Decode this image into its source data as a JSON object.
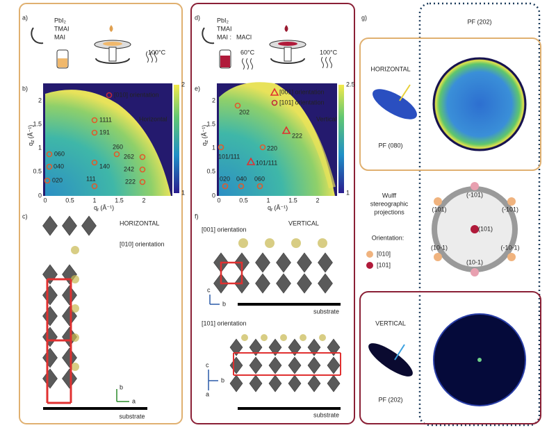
{
  "panel_a": {
    "label": "a)",
    "reagents": [
      "PbI₂",
      "TMAI",
      "MAI"
    ],
    "temperature": "100°C"
  },
  "panel_b": {
    "label": "b)",
    "legend": "[010] orientation",
    "direction": "Horizontal",
    "colorbar_ticks": [
      "2",
      "1"
    ],
    "x_ticks": [
      "0",
      "0.5",
      "1",
      "1.5",
      "2"
    ],
    "y_ticks": [
      "0",
      "0.5",
      "1",
      "1.5",
      "2"
    ],
    "x_axis_label": {
      "symbol": "q",
      "subscript": "r",
      "unit": "(Å⁻¹)"
    },
    "y_axis_label": {
      "symbol": "q",
      "subscript": "z",
      "unit": "(Å⁻¹)"
    },
    "peaks": [
      "1111",
      "191",
      "260",
      "262",
      "242",
      "222",
      "111",
      "140",
      "060",
      "040",
      "020"
    ]
  },
  "panel_c": {
    "label": "c)",
    "direction": "HORIZONTAL",
    "orientation": "[010] orientation",
    "substrate": "substrate",
    "axes": [
      "b",
      "a"
    ]
  },
  "panel_d": {
    "label": "d)",
    "reagents": [
      "PbI₂",
      "TMAI"
    ],
    "mixture": [
      "MAI :",
      "MACl"
    ],
    "temperatures": [
      "60°C",
      "100°C"
    ]
  },
  "panel_e": {
    "label": "e)",
    "legend": [
      "[001] orientation",
      "[101] orientation"
    ],
    "direction": "Vertical",
    "colorbar_ticks": [
      "2.5",
      "1"
    ],
    "x_ticks": [
      "0",
      "0.5",
      "1",
      "1.5",
      "2"
    ],
    "y_ticks": [
      "0",
      "0.5",
      "1",
      "1.5",
      "2"
    ],
    "x_axis_label": {
      "symbol": "q",
      "subscript": "r",
      "unit": "(Å⁻¹)"
    },
    "y_axis_label": {
      "symbol": "q",
      "subscript": "z",
      "unit": "(Å⁻¹)"
    },
    "peaks": [
      "202",
      "222",
      "220",
      "101/111",
      "101/111",
      "020",
      "040",
      "060"
    ]
  },
  "panel_f": {
    "label": "f)",
    "direction": "VERTICAL",
    "structures": [
      {
        "orientation": "[001] orientation",
        "substrate": "substrate",
        "axes": [
          "c",
          "b"
        ]
      },
      {
        "orientation": "[101] orientation",
        "substrate": "substrate",
        "axes": [
          "c",
          "b",
          "a"
        ]
      }
    ]
  },
  "panel_g": {
    "label": "g)",
    "title": "PF (202)",
    "horizontal": {
      "direction": "HORIZONTAL",
      "pole_figure": "PF (080)"
    },
    "wulff": {
      "title": [
        "Wulff",
        "stereographic",
        "projections"
      ],
      "orientation_title": "Orientation:",
      "orientations": [
        "[010]",
        "[101]"
      ],
      "poles": [
        "(-101)",
        "(101)",
        "(-101)",
        "(101)",
        "(10-1)",
        "(-10-1)",
        "(10-1)"
      ]
    },
    "vertical": {
      "direction": "VERTICAL",
      "pole_figure": "PF (202)"
    }
  }
}
